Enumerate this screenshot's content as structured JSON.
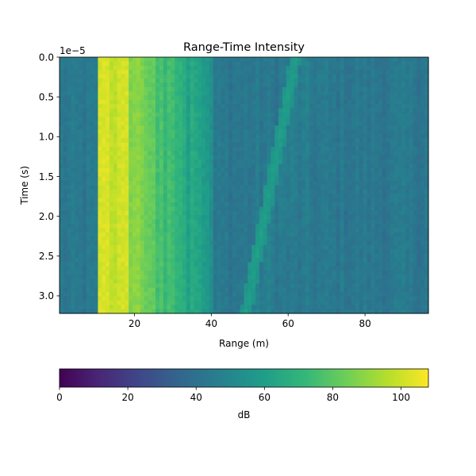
{
  "chart_data": {
    "type": "heatmap",
    "title": "Range-Time Intensity",
    "xlabel": "Range (m)",
    "ylabel": "Time (s)",
    "y_offset_label": "1e−5",
    "xlim": [
      0.5,
      96.5
    ],
    "ylim": [
      3.22e-05,
      0.0
    ],
    "x_ticks": [
      {
        "value": 20,
        "label": "20"
      },
      {
        "value": 40,
        "label": "40"
      },
      {
        "value": 60,
        "label": "60"
      },
      {
        "value": 80,
        "label": "80"
      }
    ],
    "y_ticks": [
      {
        "value": 0.0,
        "label": "0.0"
      },
      {
        "value": 5e-06,
        "label": "0.5"
      },
      {
        "value": 1e-05,
        "label": "1.0"
      },
      {
        "value": 1.5e-05,
        "label": "1.5"
      },
      {
        "value": 2e-05,
        "label": "2.0"
      },
      {
        "value": 2.5e-05,
        "label": "2.5"
      },
      {
        "value": 3e-05,
        "label": "3.0"
      }
    ],
    "colormap": "viridis",
    "colormap_stops": [
      "#440154",
      "#482878",
      "#3e4989",
      "#31688e",
      "#26828e",
      "#1f9e89",
      "#35b779",
      "#6ece58",
      "#b5de2b",
      "#fde725"
    ],
    "colorbar": {
      "label": "dB",
      "range": [
        0,
        108
      ],
      "orientation": "horizontal",
      "placement": "below",
      "ticks": [
        {
          "value": 0,
          "label": "0"
        },
        {
          "value": 20,
          "label": "20"
        },
        {
          "value": 40,
          "label": "40"
        },
        {
          "value": 60,
          "label": "60"
        },
        {
          "value": 80,
          "label": "80"
        },
        {
          "value": 100,
          "label": "100"
        }
      ]
    },
    "intensity": {
      "background_db": 43,
      "strong_band_range_m": [
        11,
        19
      ],
      "strong_band_db": 104,
      "decaying_band_range_m": [
        19,
        41
      ],
      "decaying_band_end_db": 56,
      "moving_target": {
        "range_at_t0_m": 62,
        "range_at_tmax_m": 49,
        "db": 60
      }
    }
  }
}
